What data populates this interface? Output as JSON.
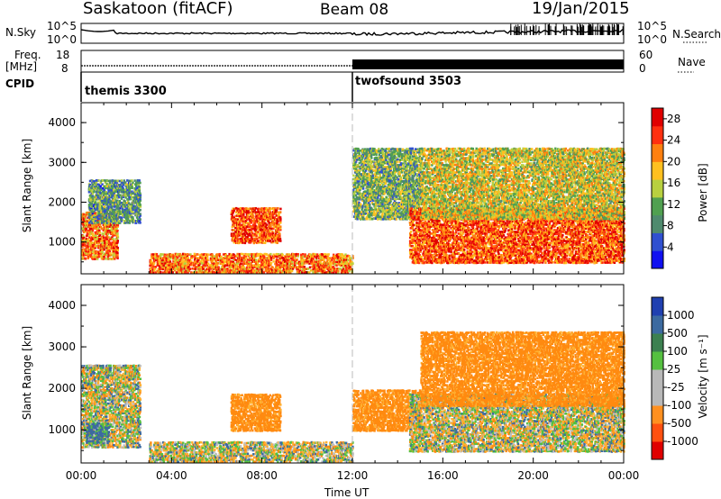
{
  "header": {
    "station": "Saskatoon (fitACF)",
    "beam": "Beam 08",
    "date": "19/Jan/2015"
  },
  "strips": {
    "noise_left_label": "N.Sky",
    "noise_right_label": "N.Search",
    "noise_left_ticks": [
      "10^5",
      "10^0"
    ],
    "noise_right_ticks": [
      "10^5",
      "10^0"
    ],
    "freq_label_line1": "Freq.",
    "freq_label_line2": "[MHz]",
    "freq_ticks": [
      "18",
      "8"
    ],
    "nave_label": "Nave",
    "nave_ticks": [
      "60",
      "0"
    ],
    "cpid_label": "CPID",
    "cpid_modes": [
      {
        "name": "themis 3300",
        "start_hour": 0
      },
      {
        "name": "twofsound 3503",
        "start_hour": 12
      }
    ]
  },
  "chart_data": [
    {
      "type": "heatmap",
      "panel": "power",
      "ylabel": "Slant Range [km]",
      "y_ticks": [
        "1000",
        "2000",
        "3000",
        "4000"
      ],
      "ylim": [
        200,
        4500
      ],
      "xlim_hours": [
        0,
        24
      ],
      "colorbar": {
        "label": "Power [dB]",
        "ticks": [
          "4",
          "8",
          "12",
          "16",
          "20",
          "24",
          "28"
        ],
        "range": [
          0,
          30
        ]
      },
      "echo_regions": [
        {
          "t0": 0.0,
          "t1": 1.6,
          "r0": 600,
          "r1": 1800,
          "db": 22
        },
        {
          "t0": 0.3,
          "t1": 2.6,
          "r0": 1500,
          "r1": 2600,
          "db": 10
        },
        {
          "t0": 6.6,
          "t1": 8.8,
          "r0": 1000,
          "r1": 1900,
          "db": 24
        },
        {
          "t0": 3.0,
          "t1": 12.0,
          "r0": 250,
          "r1": 750,
          "db": 22
        },
        {
          "t0": 12.0,
          "t1": 15.0,
          "r0": 1600,
          "r1": 3400,
          "db": 12
        },
        {
          "t0": 14.5,
          "t1": 24.0,
          "r0": 500,
          "r1": 1900,
          "db": 24
        },
        {
          "t0": 15.0,
          "t1": 24.0,
          "r0": 1600,
          "r1": 3400,
          "db": 16
        }
      ]
    },
    {
      "type": "heatmap",
      "panel": "velocity",
      "ylabel": "Slant Range [km]",
      "y_ticks": [
        "1000",
        "2000",
        "3000",
        "4000"
      ],
      "ylim": [
        200,
        4500
      ],
      "xlim_hours": [
        0,
        24
      ],
      "xlabel": "Time UT",
      "x_ticks": [
        "00:00",
        "04:00",
        "08:00",
        "12:00",
        "16:00",
        "20:00",
        "00:00"
      ],
      "colorbar": {
        "label": "Velocity [m s⁻¹]",
        "ticks": [
          "1000",
          "500",
          "100",
          "25",
          "-25",
          "-100",
          "-500",
          "-1000"
        ]
      },
      "echo_regions": [
        {
          "t0": 0.0,
          "t1": 2.6,
          "r0": 600,
          "r1": 2600,
          "vel": 0
        },
        {
          "t0": 0.2,
          "t1": 1.2,
          "r0": 700,
          "r1": 1200,
          "vel": 150
        },
        {
          "t0": 6.6,
          "t1": 8.8,
          "r0": 1000,
          "r1": 1900,
          "vel": -200
        },
        {
          "t0": 3.0,
          "t1": 12.0,
          "r0": 250,
          "r1": 750,
          "vel": 0
        },
        {
          "t0": 12.0,
          "t1": 15.0,
          "r0": 1000,
          "r1": 2000,
          "vel": -200
        },
        {
          "t0": 14.5,
          "t1": 24.0,
          "r0": 500,
          "r1": 1900,
          "vel": 0
        },
        {
          "t0": 15.0,
          "t1": 24.0,
          "r0": 1600,
          "r1": 3400,
          "vel": -200
        }
      ]
    }
  ]
}
